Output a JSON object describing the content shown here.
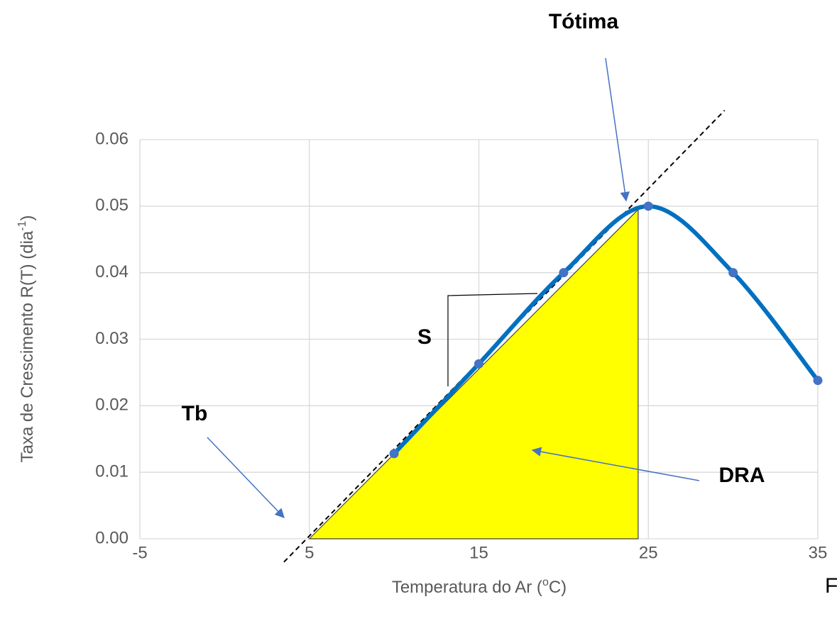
{
  "chart_data": {
    "type": "line",
    "x_label": {
      "text": "Temperatura do Ar (",
      "sup": "o",
      "end": "C)"
    },
    "y_label": {
      "text": "Taxa de Crescimento R(T) (dia",
      "sup": "-1",
      "end": ")"
    },
    "series": [
      {
        "name": "R(T)",
        "color": "#0070c0",
        "marker_color": "#4472c4",
        "x": [
          10,
          15,
          20,
          25,
          30,
          35
        ],
        "values": [
          0.0128,
          0.0263,
          0.04,
          0.05,
          0.04,
          0.0238
        ]
      }
    ],
    "fill_area": {
      "color": "#ffff00",
      "x": [
        5,
        24.4,
        24.4
      ],
      "y": [
        0,
        0.0495,
        0
      ]
    },
    "tangent_line": {
      "x": [
        3.5,
        29.5
      ],
      "y": [
        -0.0035,
        0.0644
      ]
    },
    "xlim": [
      -5,
      35
    ],
    "xticks": [
      -5,
      5,
      15,
      25,
      35
    ],
    "ylim": [
      0,
      0.06
    ],
    "yticks": [
      {
        "value": 0,
        "label": "0.00"
      },
      0.01,
      0.02,
      0.03,
      0.04,
      0.05,
      0.06
    ],
    "grid": true,
    "annotations": [
      "Tótima",
      "S",
      "Tb",
      "DRA",
      "F"
    ]
  }
}
